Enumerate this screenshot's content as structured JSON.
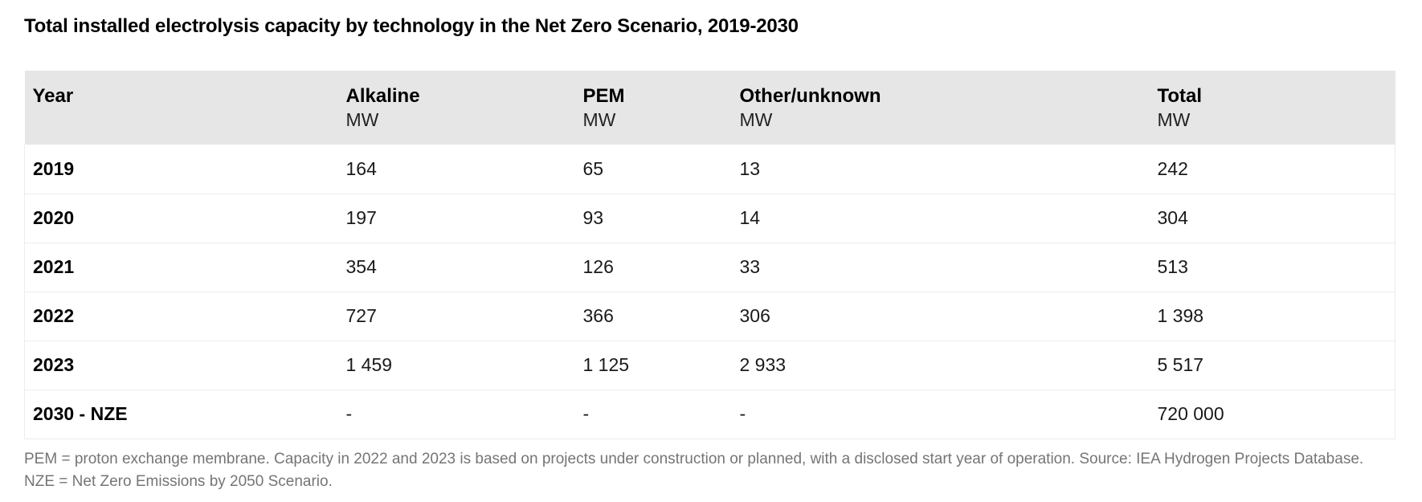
{
  "title": "Total installed electrolysis capacity by technology in the Net Zero Scenario, 2019-2030",
  "chart_data": {
    "type": "table",
    "title": "Total installed electrolysis capacity by technology in the Net Zero Scenario, 2019-2030",
    "unit": "MW",
    "columns": [
      {
        "label": "Year",
        "unit": ""
      },
      {
        "label": "Alkaline",
        "unit": "MW"
      },
      {
        "label": "PEM",
        "unit": "MW"
      },
      {
        "label": "Other/unknown",
        "unit": "MW"
      },
      {
        "label": "Total",
        "unit": "MW"
      }
    ],
    "rows": [
      {
        "year": "2019",
        "values": [
          "164",
          "65",
          "13",
          "242"
        ]
      },
      {
        "year": "2020",
        "values": [
          "197",
          "93",
          "14",
          "304"
        ]
      },
      {
        "year": "2021",
        "values": [
          "354",
          "126",
          "33",
          "513"
        ]
      },
      {
        "year": "2022",
        "values": [
          "727",
          "366",
          "306",
          "1 398"
        ]
      },
      {
        "year": "2023",
        "values": [
          "1 459",
          "1 125",
          "2 933",
          "5 517"
        ]
      },
      {
        "year": "2030 - NZE",
        "values": [
          "-",
          "-",
          "-",
          "720 000"
        ]
      }
    ]
  },
  "footnote": "PEM = proton exchange membrane. Capacity in 2022 and 2023 is based on projects under construction or planned, with a disclosed start year of operation. Source: IEA Hydrogen Projects Database. NZE = Net Zero Emissions by 2050 Scenario.",
  "colors": {
    "header_bg": "#e6e6e6",
    "row_border": "#ececec",
    "text_main": "#1a1a1a",
    "text_footnote": "#757575"
  }
}
